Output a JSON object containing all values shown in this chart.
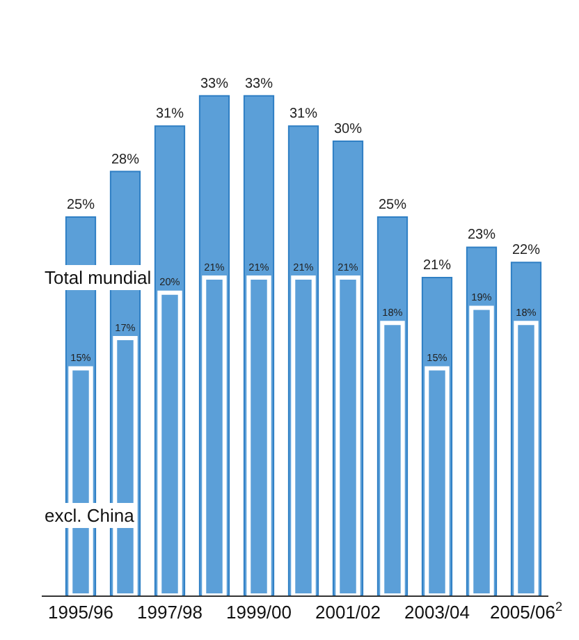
{
  "chart_data": {
    "type": "bar",
    "categories": [
      "1995/96",
      null,
      "1997/98",
      null,
      "1999/00",
      null,
      "2001/02",
      null,
      "2003/04",
      null,
      "2005/06$^{2}$"
    ],
    "series": [
      {
        "name": "Total mundial",
        "color": "#5b9fd8",
        "values": [
          25,
          28,
          31,
          33,
          33,
          31,
          30,
          25,
          21,
          23,
          22
        ],
        "value_labels": [
          "25%",
          "28%",
          "31%",
          "33%",
          "33%",
          "31%",
          "30%",
          "25%",
          "21%",
          "23%",
          "22%"
        ]
      },
      {
        "name": "excl. China",
        "color": "#5b9fd8",
        "values": [
          15,
          17,
          20,
          21,
          21,
          21,
          21,
          18,
          15,
          19,
          18
        ],
        "value_labels": [
          "15%",
          "17%",
          "20%",
          "21%",
          "21%",
          "21%",
          "21%",
          "18%",
          "15%",
          "19%",
          "18%"
        ]
      }
    ],
    "legend": false,
    "tick_labels": "x"
  }
}
